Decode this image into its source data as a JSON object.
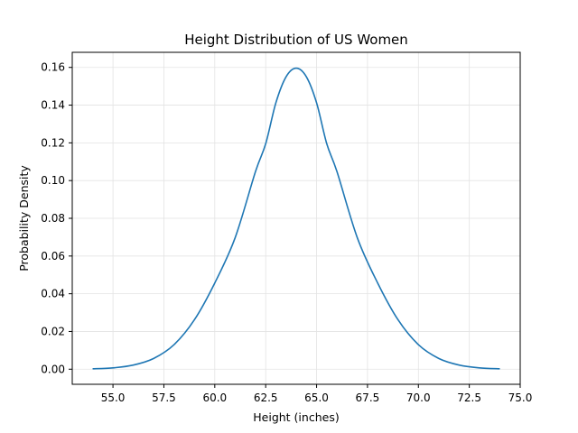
{
  "chart_data": {
    "type": "line",
    "title": "Height Distribution of US Women",
    "xlabel": "Height (inches)",
    "ylabel": "Probability Density",
    "xlim": [
      53.0,
      75.0
    ],
    "ylim": [
      -0.008,
      0.168
    ],
    "xticks": [
      55.0,
      57.5,
      60.0,
      62.5,
      65.0,
      67.5,
      70.0,
      72.5,
      75.0
    ],
    "xtick_labels": [
      "55.0",
      "57.5",
      "60.0",
      "62.5",
      "65.0",
      "67.5",
      "70.0",
      "72.5",
      "75.0"
    ],
    "yticks": [
      0.0,
      0.02,
      0.04,
      0.06,
      0.08,
      0.1,
      0.12,
      0.14,
      0.16
    ],
    "ytick_labels": [
      "0.00",
      "0.02",
      "0.04",
      "0.06",
      "0.08",
      "0.10",
      "0.12",
      "0.14",
      "0.16"
    ],
    "grid": true,
    "line_color": "#1f77b4",
    "series": [
      {
        "x": [
          54.0,
          55.0,
          56.0,
          57.0,
          58.0,
          59.0,
          60.0,
          61.0,
          62.0,
          62.5,
          63.0,
          63.5,
          64.0,
          64.5,
          65.0,
          65.5,
          66.0,
          67.0,
          68.0,
          69.0,
          70.0,
          71.0,
          72.0,
          73.0,
          74.0
        ],
        "y": [
          0.0002,
          0.0007,
          0.0022,
          0.0057,
          0.013,
          0.0262,
          0.0457,
          0.0697,
          0.1048,
          0.1195,
          0.1412,
          0.155,
          0.1596,
          0.155,
          0.1412,
          0.1195,
          0.1048,
          0.0697,
          0.0457,
          0.0262,
          0.013,
          0.0057,
          0.0022,
          0.0007,
          0.0002
        ]
      }
    ]
  }
}
